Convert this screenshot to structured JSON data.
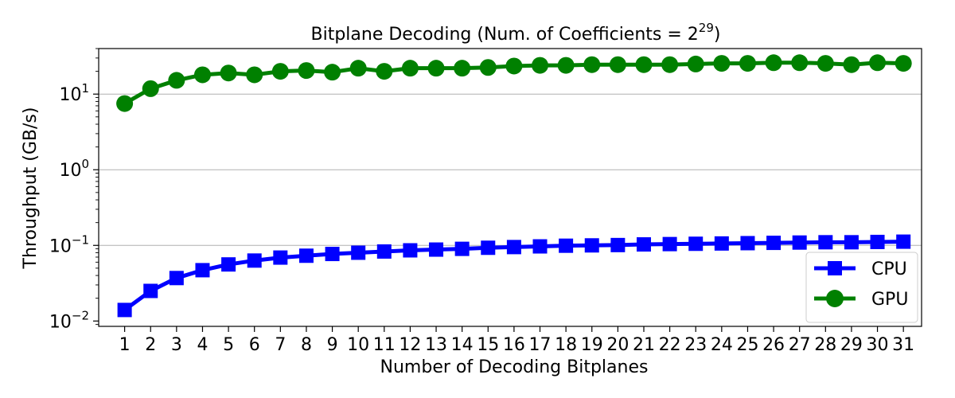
{
  "chart_data": {
    "type": "line",
    "title": "Bitplane Decoding (Num. of Coefficients = 2",
    "title_exponent": "29",
    "title_suffix": ")",
    "xlabel": "Number of Decoding Bitplanes",
    "ylabel": "Throughput (GB/s)",
    "yscale": "log",
    "ylim": [
      0.0085,
      40
    ],
    "grid": "y-major",
    "legend": "lower-right",
    "x": [
      1,
      2,
      3,
      4,
      5,
      6,
      7,
      8,
      9,
      10,
      11,
      12,
      13,
      14,
      15,
      16,
      17,
      18,
      19,
      20,
      21,
      22,
      23,
      24,
      25,
      26,
      27,
      28,
      29,
      30,
      31
    ],
    "x_tick_labels": [
      "1",
      "2",
      "3",
      "4",
      "5",
      "6",
      "7",
      "8",
      "9",
      "10",
      "11",
      "12",
      "13",
      "14",
      "15",
      "16",
      "17",
      "18",
      "19",
      "20",
      "21",
      "22",
      "23",
      "24",
      "25",
      "26",
      "27",
      "28",
      "29",
      "30",
      "31"
    ],
    "y_ticks": [
      {
        "value": 0.01,
        "base": "10",
        "exp": "−2"
      },
      {
        "value": 0.1,
        "base": "10",
        "exp": "−1"
      },
      {
        "value": 1,
        "base": "10",
        "exp": "0"
      },
      {
        "value": 10,
        "base": "10",
        "exp": "1"
      }
    ],
    "series": [
      {
        "name": "CPU",
        "color": "#0000ff",
        "marker": "square",
        "values": [
          0.014,
          0.025,
          0.037,
          0.047,
          0.056,
          0.063,
          0.069,
          0.073,
          0.077,
          0.08,
          0.083,
          0.086,
          0.088,
          0.09,
          0.093,
          0.095,
          0.097,
          0.099,
          0.1,
          0.101,
          0.103,
          0.104,
          0.105,
          0.106,
          0.107,
          0.108,
          0.109,
          0.11,
          0.11,
          0.111,
          0.112
        ]
      },
      {
        "name": "GPU",
        "color": "#008000",
        "marker": "circle",
        "values": [
          7.5,
          11.8,
          15.2,
          18.0,
          19.0,
          18.0,
          20.0,
          20.5,
          19.5,
          22.0,
          20.0,
          22.0,
          22.0,
          22.0,
          22.5,
          23.5,
          24.0,
          24.0,
          24.5,
          24.5,
          24.5,
          24.5,
          25.0,
          25.5,
          25.5,
          26.0,
          26.0,
          25.5,
          24.5,
          26.0,
          25.5
        ]
      }
    ]
  }
}
